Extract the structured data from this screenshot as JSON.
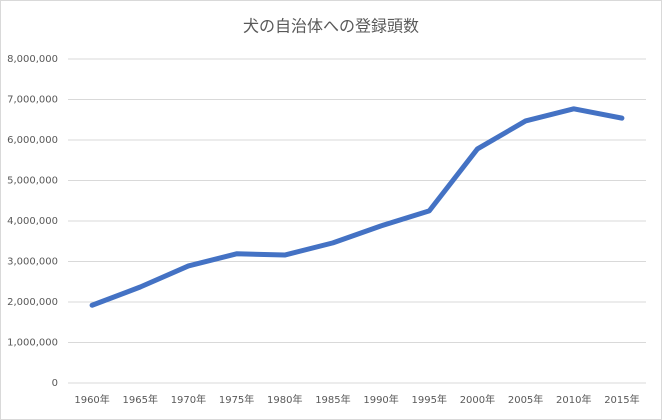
{
  "chart_data": {
    "type": "line",
    "title": "犬の自治体への登録頭数",
    "categories": [
      "1960年",
      "1965年",
      "1970年",
      "1975年",
      "1980年",
      "1985年",
      "1990年",
      "1995年",
      "2000年",
      "2005年",
      "2010年",
      "2015年"
    ],
    "series": [
      {
        "name": "登録頭数",
        "color": "#4472c4",
        "values": [
          1920000,
          2370000,
          2890000,
          3190000,
          3160000,
          3460000,
          3880000,
          4250000,
          5780000,
          6470000,
          6770000,
          6540000
        ]
      }
    ],
    "ylim": [
      0,
      8000000
    ],
    "yticks": [
      0,
      {
        "value": 1000000,
        "label": "1,000,000"
      },
      {
        "value": 2000000,
        "label": "2,000,000"
      },
      {
        "value": 3000000,
        "label": "3,000,000"
      },
      {
        "value": 4000000,
        "label": "4,000,000"
      },
      {
        "value": 5000000,
        "label": "5,000,000"
      },
      {
        "value": 6000000,
        "label": "6,000,000"
      },
      {
        "value": 7000000,
        "label": "7,000,000"
      },
      {
        "value": 8000000,
        "label": "8,000,000"
      }
    ],
    "grid": true
  }
}
